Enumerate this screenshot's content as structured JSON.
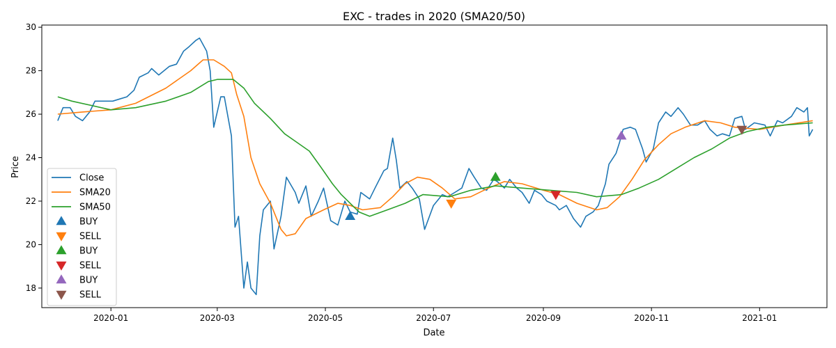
{
  "chart_data": {
    "type": "line",
    "title": "EXC - trades in 2020 (SMA20/50)",
    "xlabel": "Date",
    "ylabel": "Price",
    "x_range": [
      "2019-11-23",
      "2021-02-08"
    ],
    "ylim": [
      17.1,
      30.1
    ],
    "x_ticks": [
      {
        "date": "2020-01-01",
        "label": "2020-01"
      },
      {
        "date": "2020-03-01",
        "label": "2020-03"
      },
      {
        "date": "2020-05-01",
        "label": "2020-05"
      },
      {
        "date": "2020-07-01",
        "label": "2020-07"
      },
      {
        "date": "2020-09-01",
        "label": "2020-09"
      },
      {
        "date": "2020-11-01",
        "label": "2020-11"
      },
      {
        "date": "2021-01-01",
        "label": "2021-01"
      }
    ],
    "y_ticks": [
      {
        "value": 18,
        "label": "18"
      },
      {
        "value": 20,
        "label": "20"
      },
      {
        "value": 22,
        "label": "22"
      },
      {
        "value": 24,
        "label": "24"
      },
      {
        "value": 26,
        "label": "26"
      },
      {
        "value": 28,
        "label": "28"
      },
      {
        "value": 30,
        "label": "30"
      }
    ],
    "grid": false,
    "legend_position": "lower-left",
    "series": [
      {
        "name": "Close",
        "color": "#1f77b4",
        "points": [
          [
            "2019-12-02",
            25.7
          ],
          [
            "2019-12-05",
            26.3
          ],
          [
            "2019-12-09",
            26.3
          ],
          [
            "2019-12-12",
            25.9
          ],
          [
            "2019-12-16",
            25.7
          ],
          [
            "2019-12-20",
            26.1
          ],
          [
            "2019-12-23",
            26.6
          ],
          [
            "2019-12-27",
            26.6
          ],
          [
            "2020-01-02",
            26.6
          ],
          [
            "2020-01-06",
            26.7
          ],
          [
            "2020-01-10",
            26.8
          ],
          [
            "2020-01-14",
            27.1
          ],
          [
            "2020-01-17",
            27.7
          ],
          [
            "2020-01-22",
            27.9
          ],
          [
            "2020-01-24",
            28.1
          ],
          [
            "2020-01-28",
            27.8
          ],
          [
            "2020-02-03",
            28.2
          ],
          [
            "2020-02-07",
            28.3
          ],
          [
            "2020-02-11",
            28.9
          ],
          [
            "2020-02-14",
            29.1
          ],
          [
            "2020-02-18",
            29.4
          ],
          [
            "2020-02-20",
            29.5
          ],
          [
            "2020-02-24",
            28.9
          ],
          [
            "2020-02-26",
            28.0
          ],
          [
            "2020-02-28",
            25.4
          ],
          [
            "2020-03-03",
            26.8
          ],
          [
            "2020-03-05",
            26.8
          ],
          [
            "2020-03-09",
            25.0
          ],
          [
            "2020-03-11",
            20.8
          ],
          [
            "2020-03-13",
            21.3
          ],
          [
            "2020-03-16",
            18.0
          ],
          [
            "2020-03-18",
            19.2
          ],
          [
            "2020-03-20",
            18.0
          ],
          [
            "2020-03-23",
            17.7
          ],
          [
            "2020-03-25",
            20.4
          ],
          [
            "2020-03-27",
            21.6
          ],
          [
            "2020-03-31",
            22.0
          ],
          [
            "2020-04-02",
            19.8
          ],
          [
            "2020-04-06",
            21.3
          ],
          [
            "2020-04-09",
            23.1
          ],
          [
            "2020-04-14",
            22.4
          ],
          [
            "2020-04-16",
            21.9
          ],
          [
            "2020-04-20",
            22.7
          ],
          [
            "2020-04-23",
            21.3
          ],
          [
            "2020-04-27",
            22.0
          ],
          [
            "2020-04-30",
            22.6
          ],
          [
            "2020-05-04",
            21.1
          ],
          [
            "2020-05-08",
            20.9
          ],
          [
            "2020-05-12",
            22.0
          ],
          [
            "2020-05-15",
            21.5
          ],
          [
            "2020-05-19",
            21.4
          ],
          [
            "2020-05-21",
            22.4
          ],
          [
            "2020-05-26",
            22.1
          ],
          [
            "2020-05-29",
            22.6
          ],
          [
            "2020-06-03",
            23.4
          ],
          [
            "2020-06-05",
            23.5
          ],
          [
            "2020-06-08",
            24.9
          ],
          [
            "2020-06-10",
            23.9
          ],
          [
            "2020-06-12",
            22.6
          ],
          [
            "2020-06-16",
            22.9
          ],
          [
            "2020-06-19",
            22.6
          ],
          [
            "2020-06-23",
            22.1
          ],
          [
            "2020-06-26",
            20.7
          ],
          [
            "2020-07-01",
            21.8
          ],
          [
            "2020-07-06",
            22.3
          ],
          [
            "2020-07-09",
            22.2
          ],
          [
            "2020-07-13",
            22.4
          ],
          [
            "2020-07-17",
            22.6
          ],
          [
            "2020-07-21",
            23.5
          ],
          [
            "2020-07-24",
            23.1
          ],
          [
            "2020-07-28",
            22.6
          ],
          [
            "2020-07-31",
            22.5
          ],
          [
            "2020-08-04",
            23.0
          ],
          [
            "2020-08-06",
            22.9
          ],
          [
            "2020-08-10",
            22.6
          ],
          [
            "2020-08-13",
            23.0
          ],
          [
            "2020-08-17",
            22.6
          ],
          [
            "2020-08-20",
            22.4
          ],
          [
            "2020-08-24",
            21.9
          ],
          [
            "2020-08-27",
            22.5
          ],
          [
            "2020-08-31",
            22.3
          ],
          [
            "2020-09-03",
            22.0
          ],
          [
            "2020-09-08",
            21.8
          ],
          [
            "2020-09-10",
            21.6
          ],
          [
            "2020-09-14",
            21.8
          ],
          [
            "2020-09-18",
            21.2
          ],
          [
            "2020-09-22",
            20.8
          ],
          [
            "2020-09-25",
            21.3
          ],
          [
            "2020-09-29",
            21.5
          ],
          [
            "2020-10-02",
            21.8
          ],
          [
            "2020-10-06",
            22.8
          ],
          [
            "2020-10-08",
            23.7
          ],
          [
            "2020-10-12",
            24.2
          ],
          [
            "2020-10-14",
            24.7
          ],
          [
            "2020-10-16",
            25.3
          ],
          [
            "2020-10-20",
            25.4
          ],
          [
            "2020-10-23",
            25.3
          ],
          [
            "2020-10-27",
            24.4
          ],
          [
            "2020-10-29",
            23.8
          ],
          [
            "2020-11-02",
            24.4
          ],
          [
            "2020-11-05",
            25.6
          ],
          [
            "2020-11-09",
            26.1
          ],
          [
            "2020-11-12",
            25.9
          ],
          [
            "2020-11-16",
            26.3
          ],
          [
            "2020-11-19",
            26.0
          ],
          [
            "2020-11-23",
            25.5
          ],
          [
            "2020-11-27",
            25.5
          ],
          [
            "2020-12-01",
            25.7
          ],
          [
            "2020-12-04",
            25.3
          ],
          [
            "2020-12-08",
            25.0
          ],
          [
            "2020-12-11",
            25.1
          ],
          [
            "2020-12-15",
            25.0
          ],
          [
            "2020-12-18",
            25.8
          ],
          [
            "2020-12-22",
            25.9
          ],
          [
            "2020-12-24",
            25.3
          ],
          [
            "2020-12-29",
            25.6
          ],
          [
            "2021-01-04",
            25.5
          ],
          [
            "2021-01-07",
            25.0
          ],
          [
            "2021-01-11",
            25.7
          ],
          [
            "2021-01-14",
            25.6
          ],
          [
            "2021-01-19",
            25.9
          ],
          [
            "2021-01-22",
            26.3
          ],
          [
            "2021-01-26",
            26.1
          ],
          [
            "2021-01-28",
            26.3
          ],
          [
            "2021-01-29",
            25.0
          ],
          [
            "2021-01-31",
            25.3
          ]
        ]
      },
      {
        "name": "SMA20",
        "color": "#ff7f0e",
        "points": [
          [
            "2019-12-02",
            26.0
          ],
          [
            "2019-12-16",
            26.1
          ],
          [
            "2020-01-01",
            26.2
          ],
          [
            "2020-01-15",
            26.5
          ],
          [
            "2020-02-01",
            27.2
          ],
          [
            "2020-02-15",
            28.0
          ],
          [
            "2020-02-22",
            28.5
          ],
          [
            "2020-02-28",
            28.5
          ],
          [
            "2020-03-05",
            28.2
          ],
          [
            "2020-03-09",
            27.9
          ],
          [
            "2020-03-12",
            26.9
          ],
          [
            "2020-03-16",
            25.9
          ],
          [
            "2020-03-20",
            24.0
          ],
          [
            "2020-03-25",
            22.8
          ],
          [
            "2020-03-31",
            21.9
          ],
          [
            "2020-04-06",
            20.7
          ],
          [
            "2020-04-09",
            20.4
          ],
          [
            "2020-04-14",
            20.5
          ],
          [
            "2020-04-20",
            21.2
          ],
          [
            "2020-04-30",
            21.6
          ],
          [
            "2020-05-08",
            21.9
          ],
          [
            "2020-05-15",
            21.8
          ],
          [
            "2020-05-22",
            21.6
          ],
          [
            "2020-06-01",
            21.7
          ],
          [
            "2020-06-08",
            22.2
          ],
          [
            "2020-06-15",
            22.8
          ],
          [
            "2020-06-22",
            23.1
          ],
          [
            "2020-06-29",
            23.0
          ],
          [
            "2020-07-06",
            22.6
          ],
          [
            "2020-07-13",
            22.1
          ],
          [
            "2020-07-22",
            22.2
          ],
          [
            "2020-08-01",
            22.6
          ],
          [
            "2020-08-10",
            22.9
          ],
          [
            "2020-08-20",
            22.8
          ],
          [
            "2020-09-01",
            22.5
          ],
          [
            "2020-09-10",
            22.3
          ],
          [
            "2020-09-20",
            21.9
          ],
          [
            "2020-10-01",
            21.6
          ],
          [
            "2020-10-07",
            21.7
          ],
          [
            "2020-10-14",
            22.2
          ],
          [
            "2020-10-21",
            23.0
          ],
          [
            "2020-10-28",
            23.9
          ],
          [
            "2020-11-05",
            24.6
          ],
          [
            "2020-11-12",
            25.1
          ],
          [
            "2020-11-20",
            25.4
          ],
          [
            "2020-12-01",
            25.7
          ],
          [
            "2020-12-10",
            25.6
          ],
          [
            "2020-12-18",
            25.4
          ],
          [
            "2021-01-01",
            25.3
          ],
          [
            "2021-01-15",
            25.5
          ],
          [
            "2021-01-31",
            25.7
          ]
        ]
      },
      {
        "name": "SMA50",
        "color": "#2ca02c",
        "points": [
          [
            "2019-12-02",
            26.8
          ],
          [
            "2019-12-10",
            26.6
          ],
          [
            "2020-01-01",
            26.2
          ],
          [
            "2020-01-15",
            26.3
          ],
          [
            "2020-02-01",
            26.6
          ],
          [
            "2020-02-15",
            27.0
          ],
          [
            "2020-02-25",
            27.5
          ],
          [
            "2020-03-01",
            27.6
          ],
          [
            "2020-03-10",
            27.6
          ],
          [
            "2020-03-16",
            27.2
          ],
          [
            "2020-03-22",
            26.5
          ],
          [
            "2020-03-31",
            25.8
          ],
          [
            "2020-04-08",
            25.1
          ],
          [
            "2020-04-15",
            24.7
          ],
          [
            "2020-04-22",
            24.3
          ],
          [
            "2020-04-29",
            23.5
          ],
          [
            "2020-05-05",
            22.8
          ],
          [
            "2020-05-10",
            22.3
          ],
          [
            "2020-05-20",
            21.5
          ],
          [
            "2020-05-26",
            21.3
          ],
          [
            "2020-06-05",
            21.6
          ],
          [
            "2020-06-15",
            21.9
          ],
          [
            "2020-06-25",
            22.3
          ],
          [
            "2020-07-10",
            22.2
          ],
          [
            "2020-07-22",
            22.5
          ],
          [
            "2020-08-05",
            22.7
          ],
          [
            "2020-08-20",
            22.6
          ],
          [
            "2020-09-05",
            22.5
          ],
          [
            "2020-09-20",
            22.4
          ],
          [
            "2020-10-01",
            22.2
          ],
          [
            "2020-10-15",
            22.3
          ],
          [
            "2020-10-25",
            22.6
          ],
          [
            "2020-11-05",
            23.0
          ],
          [
            "2020-11-15",
            23.5
          ],
          [
            "2020-11-25",
            24.0
          ],
          [
            "2020-12-05",
            24.4
          ],
          [
            "2020-12-15",
            24.9
          ],
          [
            "2020-12-25",
            25.2
          ],
          [
            "2021-01-05",
            25.4
          ],
          [
            "2021-01-15",
            25.5
          ],
          [
            "2021-01-31",
            25.6
          ]
        ]
      }
    ],
    "markers": [
      {
        "name": "BUY",
        "shape": "triangle-up",
        "color": "#1f77b4",
        "date": "2020-05-15",
        "price": 21.3
      },
      {
        "name": "SELL",
        "shape": "triangle-down",
        "color": "#ff7f0e",
        "date": "2020-07-11",
        "price": 21.9
      },
      {
        "name": "BUY",
        "shape": "triangle-up",
        "color": "#2ca02c",
        "date": "2020-08-05",
        "price": 23.1
      },
      {
        "name": "SELL",
        "shape": "triangle-down",
        "color": "#d62728",
        "date": "2020-09-08",
        "price": 22.3
      },
      {
        "name": "BUY",
        "shape": "triangle-up",
        "color": "#9467bd",
        "date": "2020-10-15",
        "price": 25.0
      },
      {
        "name": "SELL",
        "shape": "triangle-down",
        "color": "#8c564b",
        "date": "2020-12-22",
        "price": 25.3
      }
    ]
  }
}
